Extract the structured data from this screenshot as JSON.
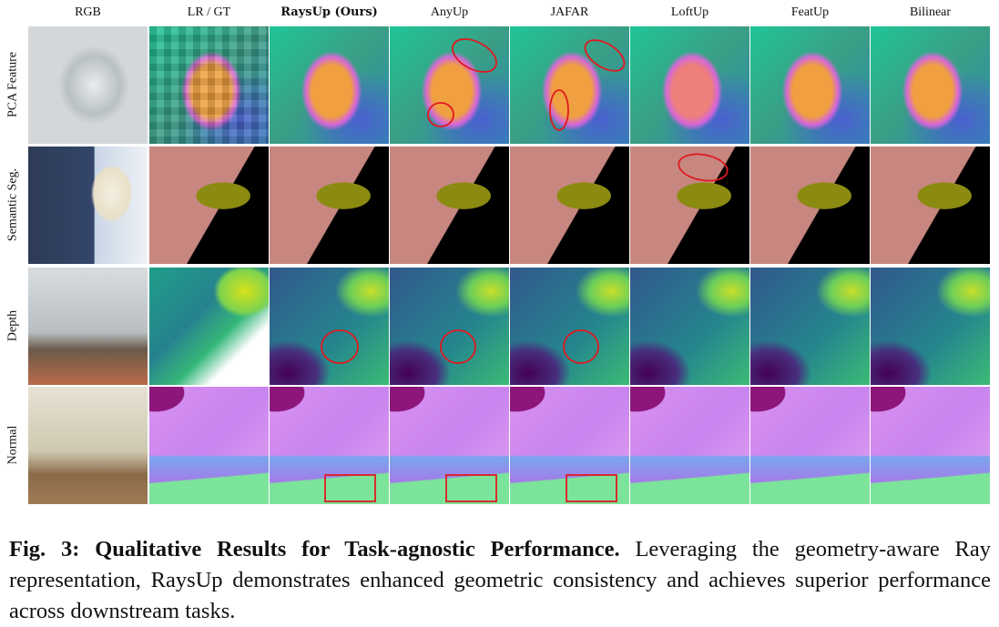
{
  "figure": {
    "columns": [
      "RGB",
      "LR / GT",
      "RaysUp (Ours)",
      "AnyUp",
      "JAFAR",
      "LoftUp",
      "FeatUp",
      "Bilinear"
    ],
    "rows": [
      "PCA Feature",
      "Semantic Seg.",
      "Depth",
      "Normal"
    ]
  },
  "caption": {
    "label": "Fig. 3:",
    "title": "Qualitative Results for Task-agnostic Performance.",
    "text": "Leveraging the geometry-aware Ray representation, RaysUp demonstrates enhanced geometric consistency and achieves superior performance across downstream tasks."
  }
}
